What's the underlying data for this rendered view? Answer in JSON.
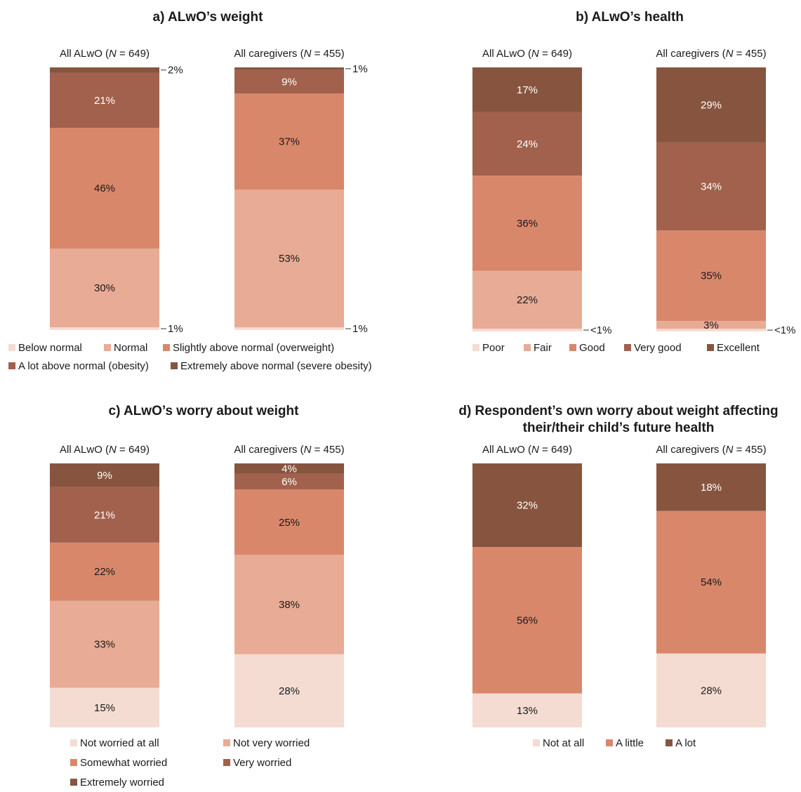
{
  "colors": {
    "c1": "#f4dcd2",
    "c2": "#e8ab95",
    "c3": "#d9876b",
    "c4": "#a1614c",
    "c5": "#87553f"
  },
  "chart_data": [
    {
      "id": "a",
      "type": "bar",
      "stacked": true,
      "title": "a) ALwO’s weight",
      "categories": [
        {
          "label_pre": "All ALwO (",
          "label_n": "N",
          "label_post": " = 649)"
        },
        {
          "label_pre": "All caregivers (",
          "label_n": "N",
          "label_post": " = 455)"
        }
      ],
      "series": [
        {
          "name": "Below normal",
          "color": "c1",
          "values": [
            1,
            1
          ],
          "labels": [
            "1%",
            "1%"
          ],
          "label_style": [
            "outside",
            "outside"
          ]
        },
        {
          "name": "Normal",
          "color": "c2",
          "values": [
            30,
            53
          ],
          "labels": [
            "30%",
            "53%"
          ]
        },
        {
          "name": "Slightly above normal (overweight)",
          "color": "c3",
          "values": [
            46,
            37
          ],
          "labels": [
            "46%",
            "37%"
          ]
        },
        {
          "name": "A lot above normal (obesity)",
          "color": "c4",
          "values": [
            21,
            9
          ],
          "labels": [
            "21%",
            "9%"
          ]
        },
        {
          "name": "Extremely above normal (severe obesity)",
          "color": "c5",
          "values": [
            2,
            1
          ],
          "labels": [
            "2%",
            "1%"
          ],
          "label_style": [
            "outside",
            "outside"
          ]
        }
      ]
    },
    {
      "id": "b",
      "type": "bar",
      "stacked": true,
      "title": "b) ALwO’s health",
      "categories": [
        {
          "label_pre": "All ALwO (",
          "label_n": "N",
          "label_post": " = 649)"
        },
        {
          "label_pre": "All caregivers (",
          "label_n": "N",
          "label_post": " = 455)"
        }
      ],
      "series": [
        {
          "name": "Poor",
          "color": "c1",
          "values": [
            1,
            1
          ],
          "labels": [
            "<1%",
            "<1%"
          ],
          "label_style": [
            "outside",
            "outside"
          ]
        },
        {
          "name": "Fair",
          "color": "c2",
          "values": [
            22,
            3
          ],
          "labels": [
            "22%",
            "3%"
          ]
        },
        {
          "name": "Good",
          "color": "c3",
          "values": [
            36,
            35
          ],
          "labels": [
            "36%",
            "35%"
          ]
        },
        {
          "name": "Very good",
          "color": "c4",
          "values": [
            24,
            34
          ],
          "labels": [
            "24%",
            "34%"
          ]
        },
        {
          "name": "Excellent",
          "color": "c5",
          "values": [
            17,
            29
          ],
          "labels": [
            "17%",
            "29%"
          ]
        }
      ]
    },
    {
      "id": "c",
      "type": "bar",
      "stacked": true,
      "title": "c) ALwO’s worry about weight",
      "categories": [
        {
          "label_pre": "All ALwO (",
          "label_n": "N",
          "label_post": " = 649)"
        },
        {
          "label_pre": "All caregivers (",
          "label_n": "N",
          "label_post": " = 455)"
        }
      ],
      "series": [
        {
          "name": "Not worried at all",
          "color": "c1",
          "values": [
            15,
            28
          ],
          "labels": [
            "15%",
            "28%"
          ]
        },
        {
          "name": "Not very worried",
          "color": "c2",
          "values": [
            33,
            38
          ],
          "labels": [
            "33%",
            "38%"
          ]
        },
        {
          "name": "Somewhat worried",
          "color": "c3",
          "values": [
            22,
            25
          ],
          "labels": [
            "22%",
            "25%"
          ]
        },
        {
          "name": "Very worried",
          "color": "c4",
          "values": [
            21,
            6
          ],
          "labels": [
            "21%",
            "6%"
          ]
        },
        {
          "name": "Extremely worried",
          "color": "c5",
          "values": [
            9,
            4
          ],
          "labels": [
            "9%",
            "4%"
          ]
        }
      ]
    },
    {
      "id": "d",
      "type": "bar",
      "stacked": true,
      "title": "d) Respondent’s own worry about weight affecting their/their child’s future health",
      "title_lines": [
        "d) Respondent’s own worry about weight affecting",
        "their/their child’s future health"
      ],
      "categories": [
        {
          "label_pre": "All ALwO (",
          "label_n": "N",
          "label_post": " = 649)"
        },
        {
          "label_pre": "All caregivers (",
          "label_n": "N",
          "label_post": " = 455)"
        }
      ],
      "series": [
        {
          "name": "Not at all",
          "color": "c1",
          "values": [
            13,
            28
          ],
          "labels": [
            "13%",
            "28%"
          ]
        },
        {
          "name": "A little",
          "color": "c3",
          "values": [
            56,
            54
          ],
          "labels": [
            "56%",
            "54%"
          ]
        },
        {
          "name": "A lot",
          "color": "c5",
          "values": [
            32,
            18
          ],
          "labels": [
            "32%",
            "18%"
          ]
        }
      ]
    }
  ]
}
